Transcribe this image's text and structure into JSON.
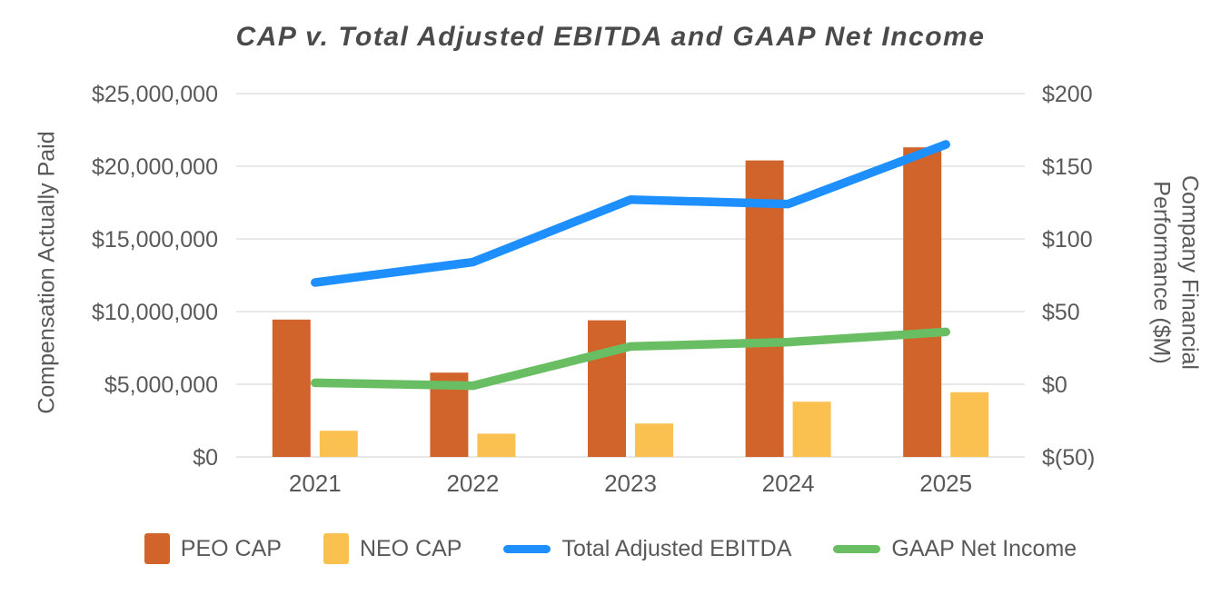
{
  "chart_data": {
    "type": "combo-bar-line",
    "title": "CAP v. Total Adjusted EBITDA and GAAP Net Income",
    "categories": [
      "2021",
      "2022",
      "2023",
      "2024",
      "2025"
    ],
    "bar_series": [
      {
        "name": "PEO CAP",
        "axis": "left",
        "color": "#D1642B",
        "values": [
          9450000,
          5800000,
          9400000,
          20400000,
          21300000
        ]
      },
      {
        "name": "NEO CAP",
        "axis": "left",
        "color": "#FBC150",
        "values": [
          1800000,
          1600000,
          2300000,
          3800000,
          4450000
        ]
      }
    ],
    "line_series": [
      {
        "name": "Total Adjusted EBITDA",
        "axis": "right",
        "color": "#1E8FFF",
        "values": [
          70,
          84,
          127,
          124,
          165
        ]
      },
      {
        "name": "GAAP Net Income",
        "axis": "right",
        "color": "#69BE63",
        "values": [
          1,
          -1,
          26,
          29,
          36
        ]
      }
    ],
    "left_axis": {
      "title": "Compensation Actually Paid",
      "min": 0,
      "max": 25000000,
      "tick_step": 5000000,
      "tick_labels": [
        "$0",
        "$5,000,000",
        "$10,000,000",
        "$15,000,000",
        "$20,000,000",
        "$25,000,000"
      ]
    },
    "right_axis": {
      "title": "Company Financial Performance ($M)",
      "min": -50,
      "max": 200,
      "tick_step": 50,
      "tick_labels": [
        "$(50)",
        "$0",
        "$50",
        "$100",
        "$150",
        "$200"
      ]
    },
    "grid": "horizontal",
    "gridline_color": "#D9D9D9",
    "text_color": "#595959",
    "title_color": "#4A4A4A",
    "legend_position": "bottom",
    "legend": [
      {
        "label": "PEO CAP",
        "swatch": "bar",
        "color": "#D1642B"
      },
      {
        "label": "NEO CAP",
        "swatch": "bar",
        "color": "#FBC150"
      },
      {
        "label": "Total Adjusted EBITDA",
        "swatch": "line",
        "color": "#1E8FFF"
      },
      {
        "label": "GAAP Net Income",
        "swatch": "line",
        "color": "#69BE63"
      }
    ]
  }
}
